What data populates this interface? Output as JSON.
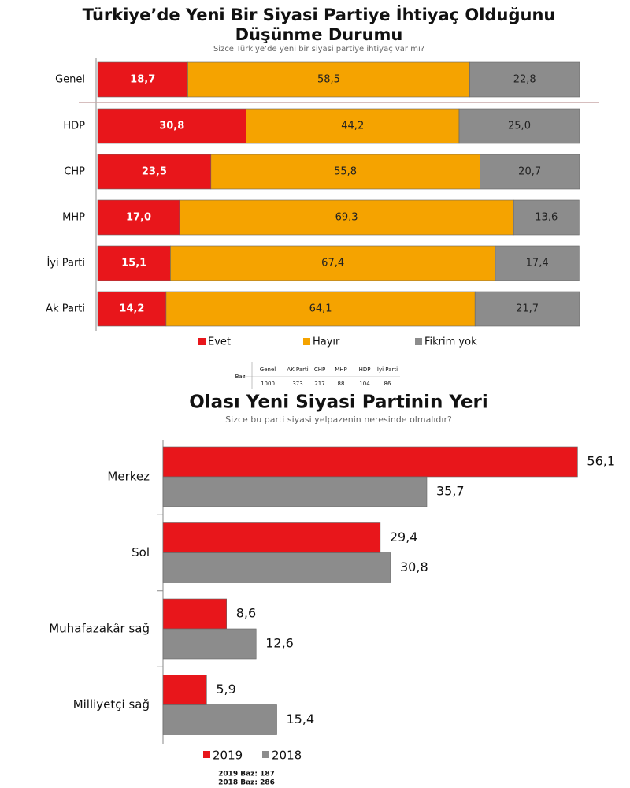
{
  "chart_data": [
    {
      "type": "stacked-bar",
      "title": [
        "Türkiye’de Yeni Bir Siyasi Partiye İhtiyaç Olduğunu",
        "Düşünme Durumu"
      ],
      "subtitle": "Sizce Türkiye’de yeni bir siyasi partiye ihtiyaç var mı?",
      "categories": [
        "Genel",
        "HDP",
        "CHP",
        "MHP",
        "İyi Parti",
        "Ak Parti"
      ],
      "xlim": [
        0,
        100
      ],
      "series": [
        {
          "name": "Evet",
          "color": "#e8161b",
          "values": [
            18.7,
            30.8,
            23.5,
            17.0,
            15.1,
            14.2
          ],
          "value_labels": [
            "18,7",
            "30,8",
            "23,5",
            "17,0",
            "15,1",
            "14,2"
          ]
        },
        {
          "name": "Hayır",
          "color": "#f5a300",
          "values": [
            58.5,
            44.2,
            55.8,
            69.3,
            67.4,
            64.1
          ],
          "value_labels": [
            "58,5",
            "44,2",
            "55,8",
            "69,3",
            "67,4",
            "64,1"
          ]
        },
        {
          "name": "Fikrim yok",
          "color": "#8c8c8c",
          "values": [
            22.8,
            25.0,
            20.7,
            13.6,
            17.4,
            21.7
          ],
          "value_labels": [
            "22,8",
            "25,0",
            "20,7",
            "13,6",
            "17,4",
            "21,7"
          ]
        }
      ],
      "base_table": {
        "label": "Baz",
        "columns": [
          "Genel",
          "AK Parti",
          "CHP",
          "MHP",
          "HDP",
          "İyi Parti"
        ],
        "values": [
          1000,
          373,
          217,
          88,
          104,
          86
        ]
      }
    },
    {
      "type": "grouped-bar",
      "title": "Olası Yeni Siyasi Partinin Yeri",
      "subtitle": "Sizce bu parti siyasi yelpazenin neresinde olmalıdır?",
      "categories": [
        "Merkez",
        "Sol",
        "Muhafazakâr sağ",
        "Milliyetçi sağ"
      ],
      "xlim": [
        0,
        60
      ],
      "series": [
        {
          "name": "2019",
          "color": "#e8161b",
          "values": [
            56.1,
            29.4,
            8.6,
            5.9
          ],
          "value_labels": [
            "56,1",
            "29,4",
            "8,6",
            "5,9"
          ]
        },
        {
          "name": "2018",
          "color": "#8c8c8c",
          "values": [
            35.7,
            30.8,
            12.6,
            15.4
          ],
          "value_labels": [
            "35,7",
            "30,8",
            "12,6",
            "15,4"
          ]
        }
      ],
      "notes": [
        "2019 Baz: 187",
        "2018 Baz: 286"
      ]
    }
  ]
}
